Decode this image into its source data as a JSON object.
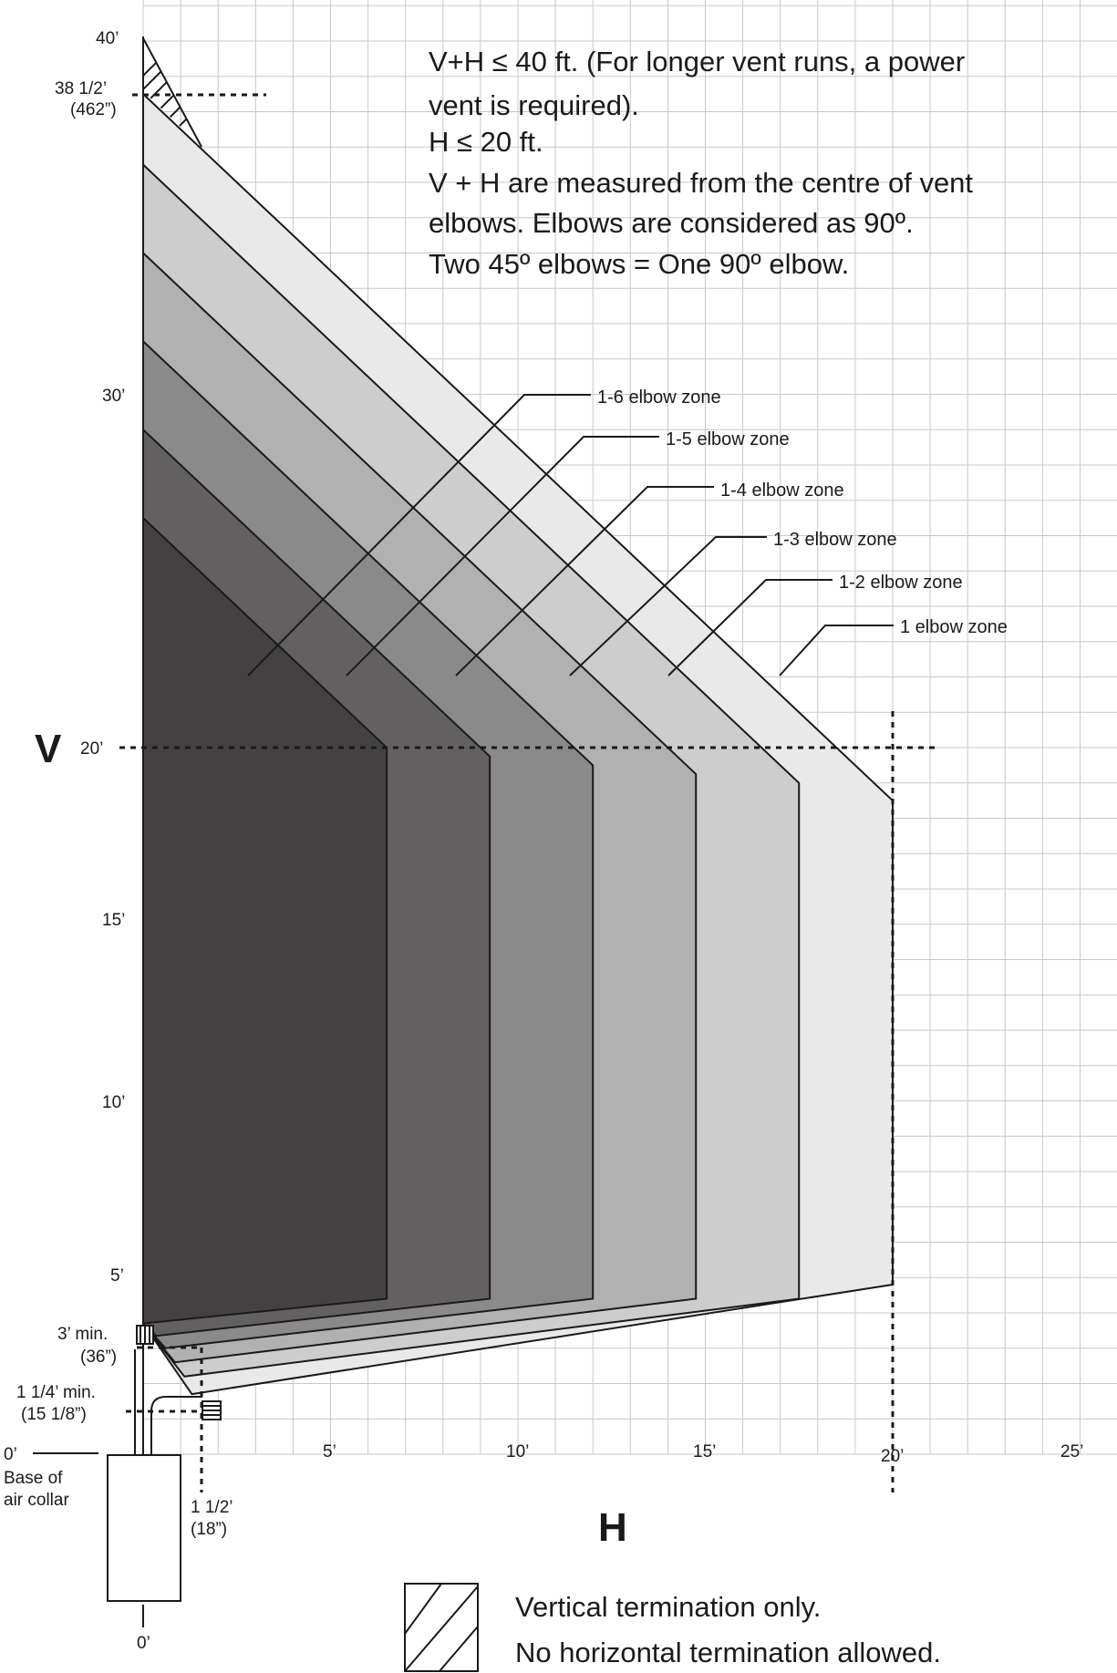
{
  "notes": [
    "V+H ≤ 40 ft. (For longer vent runs, a power",
    "vent is required).",
    "H ≤ 20 ft.",
    "V + H are measured from the centre of vent",
    "elbows. Elbows are considered as 90º.",
    "Two 45º elbows = One 90º elbow."
  ],
  "axes": {
    "v_letter": "V",
    "h_letter": "H",
    "v_ticks": [
      "40’",
      "30’",
      "20’",
      "15’",
      "10’",
      "5’"
    ],
    "h_ticks": [
      "5’",
      "10’",
      "15’",
      "20’",
      "25’"
    ]
  },
  "annotations": {
    "top_a": "38 1/2’",
    "top_b": "(462”)",
    "min3_a": "3’ min.",
    "min3_b": "(36”)",
    "min114_a": "1 1/4’ min.",
    "min114_b": "(15 1/8”)",
    "zero_v": "0’",
    "base_a": "Base of",
    "base_b": "air collar",
    "h112_a": "1 1/2’",
    "h112_b": "(18”)",
    "zero_h": "0’"
  },
  "zones": [
    {
      "label": "1 elbow zone",
      "max_h_ft": 20,
      "fill": "#e9e9e9"
    },
    {
      "label": "1-2 elbow zone",
      "max_h_ft": 17.5,
      "fill": "#cdcdcd"
    },
    {
      "label": "1-3 elbow zone",
      "max_h_ft": 14.75,
      "fill": "#b1b1b1"
    },
    {
      "label": "1-4 elbow zone",
      "max_h_ft": 12,
      "fill": "#8b8a8b"
    },
    {
      "label": "1-5 elbow zone",
      "max_h_ft": 9.25,
      "fill": "#626061"
    },
    {
      "label": "1-6 elbow zone",
      "max_h_ft": 6.5,
      "fill": "#434142"
    }
  ],
  "legend": {
    "line1": "Vertical termination only.",
    "line2": "No horizontal termination allowed."
  }
}
